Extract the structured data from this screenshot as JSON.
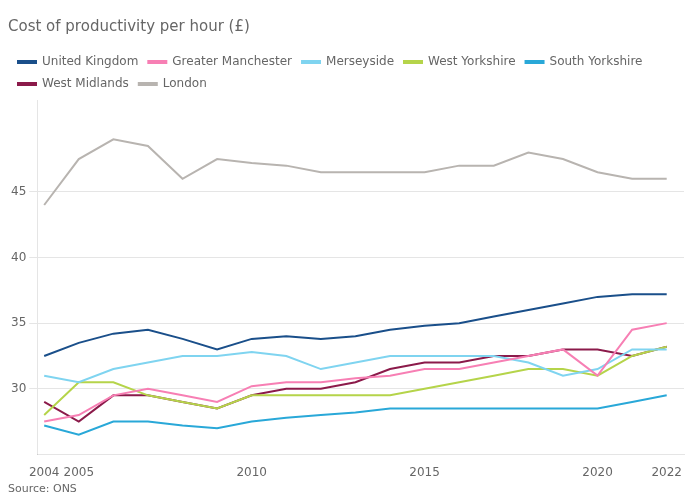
{
  "chart_data": {
    "type": "line",
    "title": "Cost of productivity per hour (£)",
    "annotations": [
      "Source: ONS"
    ],
    "x": [
      2004,
      2005,
      2006,
      2007,
      2008,
      2009,
      2010,
      2011,
      2012,
      2013,
      2014,
      2015,
      2016,
      2017,
      2018,
      2019,
      2020,
      2021,
      2022
    ],
    "series": [
      {
        "name": "United Kingdom",
        "color": "#1a4f8a",
        "values": [
          32.5,
          33.5,
          34.2,
          34.5,
          33.8,
          33.0,
          33.8,
          34.0,
          33.8,
          34.0,
          34.5,
          34.8,
          35.0,
          35.5,
          36.0,
          36.5,
          37.0,
          37.2,
          37.2
        ]
      },
      {
        "name": "Greater Manchester",
        "color": "#f77fb4",
        "values": [
          27.5,
          28.0,
          29.5,
          30.0,
          29.5,
          29.0,
          30.2,
          30.5,
          30.5,
          30.8,
          31.0,
          31.5,
          31.5,
          32.0,
          32.5,
          33.0,
          31.0,
          34.5,
          35.0
        ]
      },
      {
        "name": "Merseyside",
        "color": "#7fd4f0",
        "values": [
          31.0,
          30.5,
          31.5,
          32.0,
          32.5,
          32.5,
          32.8,
          32.5,
          31.5,
          32.0,
          32.5,
          32.5,
          32.5,
          32.5,
          32.0,
          31.0,
          31.5,
          33.0,
          33.0
        ]
      },
      {
        "name": "West Yorkshire",
        "color": "#b5d44a",
        "values": [
          28.0,
          30.5,
          30.5,
          29.5,
          29.0,
          28.5,
          29.5,
          29.5,
          29.5,
          29.5,
          29.5,
          30.0,
          30.5,
          31.0,
          31.5,
          31.5,
          31.0,
          32.5,
          33.2
        ]
      },
      {
        "name": "South Yorkshire",
        "color": "#29a8d8",
        "values": [
          27.2,
          26.5,
          27.5,
          27.5,
          27.2,
          27.0,
          27.5,
          27.8,
          28.0,
          28.2,
          28.5,
          28.5,
          28.5,
          28.5,
          28.5,
          28.5,
          28.5,
          29.0,
          29.5
        ]
      },
      {
        "name": "West Midlands",
        "color": "#8b1a4a",
        "values": [
          29.0,
          27.5,
          29.5,
          29.5,
          29.0,
          28.5,
          29.5,
          30.0,
          30.0,
          30.5,
          31.5,
          32.0,
          32.0,
          32.5,
          32.5,
          33.0,
          33.0,
          32.5,
          33.2
        ]
      },
      {
        "name": "London",
        "color": "#b8b4b0",
        "values": [
          44.0,
          47.5,
          49.0,
          48.5,
          46.0,
          47.5,
          47.2,
          47.0,
          46.5,
          46.5,
          46.5,
          46.5,
          47.0,
          47.0,
          48.0,
          47.5,
          46.5,
          46.0,
          46.0
        ]
      }
    ],
    "xlim": [
      2003.8,
      2022.5
    ],
    "xticks": [
      2004,
      2005,
      2010,
      2015,
      2020,
      2022
    ],
    "ylim": [
      25,
      52
    ],
    "yticks": [
      30,
      35,
      40,
      45
    ],
    "grid": "y",
    "legend": "upper left",
    "marker": "none"
  }
}
